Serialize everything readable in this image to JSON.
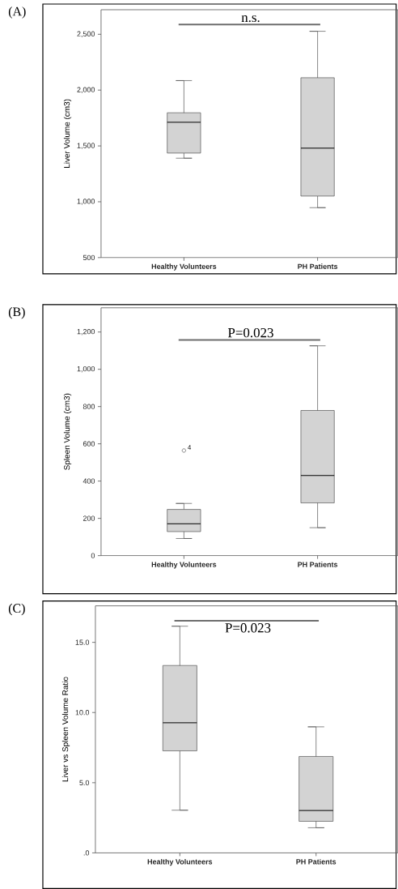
{
  "chart_data": [
    {
      "type": "box",
      "title": "(A)",
      "ylabel": "Liver Volume (cm3)",
      "categories": [
        "Healthy Volunteers",
        "PH Patients"
      ],
      "color": "#d3d3d3",
      "boxes": [
        {
          "low": 1390,
          "q1": 1436,
          "median": 1712,
          "q3": 1797,
          "high": 2085
        },
        {
          "low": 947,
          "q1": 1051,
          "median": 1480,
          "q3": 2111,
          "high": 2527
        }
      ],
      "ylim": [
        500,
        2720
      ],
      "yticks": [
        500,
        {
          "value": 1000,
          "label": "1,000"
        },
        {
          "value": 1500,
          "label": "1,500"
        },
        {
          "value": 2000,
          "label": "2,000"
        },
        {
          "value": 2500,
          "label": "2,500"
        }
      ],
      "annotations": [
        "n.s."
      ]
    },
    {
      "type": "box",
      "title": "(B)",
      "ylabel": "Spleen Volume (cm3)",
      "categories": [
        "Healthy Volunteers",
        "PH Patients"
      ],
      "color": "#d3d3d3",
      "boxes": [
        {
          "low": 92,
          "q1": 129,
          "median": 171,
          "q3": 248,
          "high": 280,
          "outliers": [
            564
          ]
        },
        {
          "low": 150,
          "q1": 283,
          "median": 430,
          "q3": 779,
          "high": 1126
        }
      ],
      "ylim": [
        0,
        1330
      ],
      "yticks": [
        0,
        200,
        400,
        600,
        800,
        {
          "value": 1000,
          "label": "1,000"
        },
        {
          "value": 1200,
          "label": "1,200"
        }
      ],
      "annotations": [
        "P=0.023",
        "4"
      ]
    },
    {
      "type": "box",
      "title": "(C)",
      "ylabel": "Liver vs Spleen Volume Ratio",
      "categories": [
        "Healthy Volunteers",
        "PH Patients"
      ],
      "color": "#d3d3d3",
      "boxes": [
        {
          "low": 3.04,
          "q1": 7.27,
          "median": 9.27,
          "q3": 13.35,
          "high": 16.15
        },
        {
          "low": 1.79,
          "q1": 2.25,
          "median": 3.02,
          "q3": 6.87,
          "high": 8.98
        }
      ],
      "ylim": [
        0,
        17.6
      ],
      "yticks": [
        {
          "value": 0,
          "label": ".0"
        },
        {
          "value": 5,
          "label": "5.0"
        },
        {
          "value": 10,
          "label": "10.0"
        },
        {
          "value": 15,
          "label": "15.0"
        }
      ],
      "annotations": [
        "P=0.023"
      ]
    }
  ]
}
